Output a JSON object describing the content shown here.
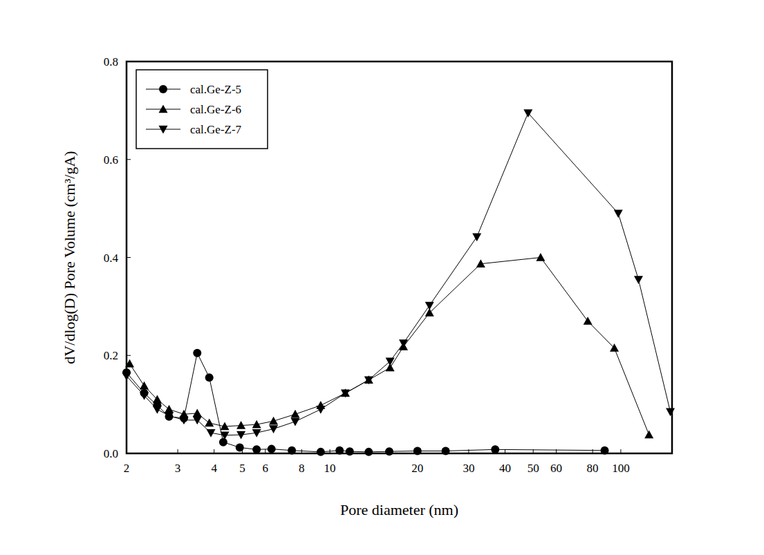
{
  "chart_data": {
    "type": "line",
    "x_label": "Pore diameter (nm)",
    "y_label": "dV/dlog(D) Pore Volume (cm³/gA)",
    "log": "x",
    "legend": "top-left",
    "grid": false,
    "xlim": [
      2,
      150
    ],
    "ylim": [
      0,
      0.8
    ],
    "xticks": [
      2,
      3,
      4,
      5,
      6,
      8,
      10,
      20,
      30,
      40,
      50,
      60,
      80,
      100
    ],
    "yticks": [
      {
        "value": 0,
        "label": "0.0"
      },
      {
        "value": 0.2,
        "label": "0.2"
      },
      {
        "value": 0.4,
        "label": "0.4"
      },
      {
        "value": 0.6,
        "label": "0.6"
      },
      {
        "value": 0.8,
        "label": "0.8"
      }
    ],
    "series": [
      {
        "name": "cal.Ge-Z-5",
        "color": "#000000",
        "marker": "circle",
        "line_style": "solid",
        "x": [
          2.0,
          2.3,
          2.55,
          2.8,
          3.15,
          3.5,
          3.85,
          4.3,
          4.9,
          5.6,
          6.3,
          7.4,
          9.3,
          10.8,
          11.7,
          13.6,
          16,
          20,
          25,
          37,
          88
        ],
        "values": [
          0.165,
          0.123,
          0.098,
          0.075,
          0.072,
          0.205,
          0.155,
          0.023,
          0.012,
          0.008,
          0.009,
          0.006,
          0.003,
          0.006,
          0.004,
          0.003,
          0.004,
          0.005,
          0.005,
          0.008,
          0.006
        ]
      },
      {
        "name": "cal.Ge-Z-6",
        "color": "#000000",
        "marker": "triangle-up",
        "line_style": "solid",
        "x": [
          2.05,
          2.3,
          2.55,
          2.8,
          3.15,
          3.5,
          3.85,
          4.35,
          4.95,
          5.6,
          6.4,
          7.6,
          9.3,
          11.3,
          13.6,
          16.1,
          17.9,
          22,
          33,
          53,
          77,
          95,
          125
        ],
        "values": [
          0.183,
          0.138,
          0.11,
          0.09,
          0.08,
          0.082,
          0.062,
          0.055,
          0.057,
          0.059,
          0.066,
          0.08,
          0.098,
          0.123,
          0.15,
          0.175,
          0.218,
          0.287,
          0.387,
          0.4,
          0.27,
          0.215,
          0.038
        ]
      },
      {
        "name": "cal.Ge-Z-7",
        "color": "#000000",
        "marker": "triangle-down",
        "line_style": "solid",
        "x": [
          2.0,
          2.3,
          2.55,
          2.8,
          3.15,
          3.5,
          3.9,
          4.35,
          4.95,
          5.6,
          6.4,
          7.6,
          9.3,
          11.3,
          13.6,
          16.1,
          17.9,
          22,
          32,
          48,
          98,
          115,
          148
        ],
        "values": [
          0.158,
          0.118,
          0.09,
          0.077,
          0.068,
          0.068,
          0.042,
          0.037,
          0.038,
          0.042,
          0.05,
          0.065,
          0.09,
          0.123,
          0.15,
          0.188,
          0.225,
          0.302,
          0.442,
          0.695,
          0.49,
          0.355,
          0.085
        ]
      }
    ]
  }
}
